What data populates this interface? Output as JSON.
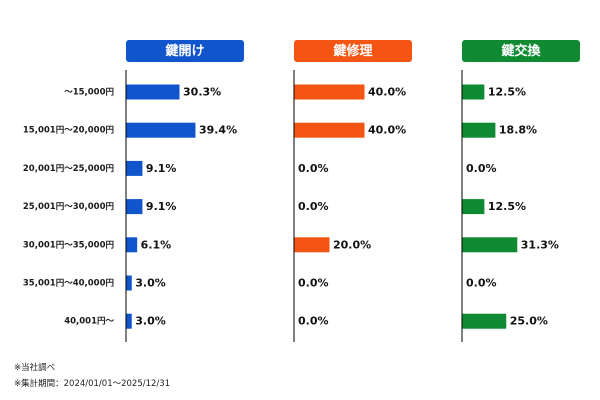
{
  "chart_data": {
    "type": "bar",
    "orientation": "horizontal",
    "layout": "small-multiples",
    "categories": [
      "～15,000円",
      "15,001円～20,000円",
      "20,001円～25,000円",
      "25,001円～30,000円",
      "30,001円～35,000円",
      "35,001円～40,000円",
      "40,001円～"
    ],
    "value_suffix": "%",
    "value_decimals": 1,
    "xlim": [
      0,
      100
    ],
    "grid": false,
    "legend": "none",
    "series": [
      {
        "name": "鍵開け",
        "color": "#1155cc",
        "values": [
          30.3,
          39.4,
          9.1,
          9.1,
          6.1,
          3.0,
          3.0
        ]
      },
      {
        "name": "鍵修理",
        "color": "#f45513",
        "values": [
          40.0,
          40.0,
          0.0,
          0.0,
          20.0,
          0.0,
          0.0
        ]
      },
      {
        "name": "鍵交換",
        "color": "#0f8a32",
        "values": [
          12.5,
          18.8,
          0.0,
          12.5,
          31.3,
          0.0,
          25.0
        ]
      }
    ]
  },
  "notes": [
    "※当社調べ",
    "※集計期間：2024/01/01～2025/12/31"
  ]
}
